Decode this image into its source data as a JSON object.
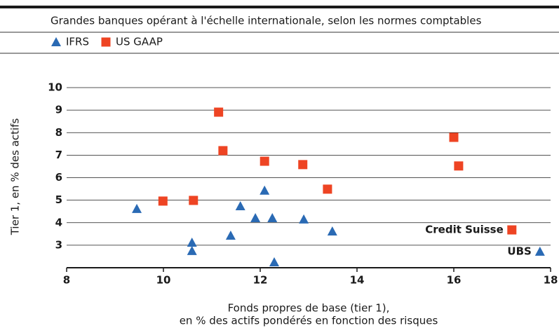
{
  "chart_data": {
    "type": "scatter",
    "subtitle": "Grandes banques opérant à l'échelle internationale, selon les normes comptables",
    "x_label": [
      "Fonds propres de base (tier 1),",
      "en % des actifs pondérés en fonction des risques"
    ],
    "y_label": "Tier 1, en % des actifs",
    "xlim": [
      8,
      18
    ],
    "xticks": [
      8,
      10,
      12,
      14,
      16,
      18
    ],
    "ylim": [
      2,
      10
    ],
    "yticks": [
      3,
      4,
      5,
      6,
      7,
      8,
      9,
      10
    ],
    "grid": true,
    "series": [
      {
        "name": "IFRS",
        "color": "#2a6ab4",
        "marker": "triangle",
        "x": [
          9.45,
          10.59,
          10.59,
          11.39,
          11.59,
          11.9,
          12.09,
          12.25,
          12.29,
          12.9,
          13.49,
          17.78
        ],
        "values": [
          4.62,
          3.12,
          2.75,
          3.43,
          4.74,
          4.21,
          5.43,
          4.21,
          2.25,
          4.15,
          3.62,
          2.72
        ],
        "point_labels": [
          null,
          null,
          null,
          null,
          null,
          null,
          null,
          null,
          null,
          null,
          null,
          "UBS"
        ]
      },
      {
        "name": "US GAAP",
        "color": "#ee4423",
        "marker": "square",
        "x": [
          11.14,
          11.23,
          9.99,
          10.62,
          12.09,
          12.88,
          13.39,
          16.0,
          16.1,
          17.2
        ],
        "values": [
          8.91,
          7.2,
          4.96,
          4.99,
          6.73,
          6.58,
          5.49,
          7.79,
          6.52,
          3.68
        ],
        "point_labels": [
          null,
          null,
          null,
          null,
          null,
          null,
          null,
          null,
          null,
          "Credit Suisse"
        ]
      }
    ]
  }
}
